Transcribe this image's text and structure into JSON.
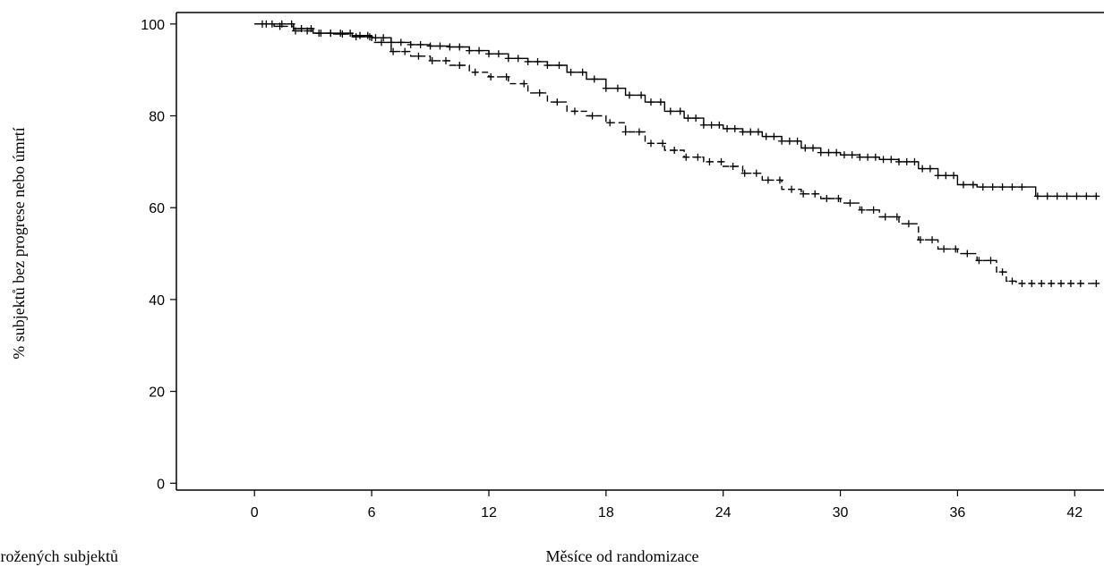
{
  "chart_data": {
    "type": "line",
    "title": "",
    "xlabel": "Měsíce od randomizace",
    "ylabel": "% subjektů bez progrese nebo úmrtí",
    "xlim": [
      -4,
      43.5
    ],
    "ylim": [
      -1.5,
      102.5
    ],
    "xticks": [
      0,
      6,
      12,
      18,
      24,
      30,
      36,
      42
    ],
    "yticks": [
      0,
      20,
      40,
      60,
      80,
      100
    ],
    "grid": false,
    "legend": "none",
    "footnote": "Počet ohrožených subjektů",
    "series": [
      {
        "line_style": "solid",
        "color": "#000000",
        "points": [
          [
            0,
            100
          ],
          [
            1,
            100
          ],
          [
            2,
            99
          ],
          [
            3,
            98
          ],
          [
            4,
            98
          ],
          [
            5,
            97.5
          ],
          [
            6,
            97
          ],
          [
            7,
            96
          ],
          [
            8,
            95.5
          ],
          [
            9,
            95.2
          ],
          [
            10,
            95
          ],
          [
            11,
            94.2
          ],
          [
            12,
            93.5
          ],
          [
            13,
            92.5
          ],
          [
            14,
            91.8
          ],
          [
            15,
            91
          ],
          [
            16,
            89.5
          ],
          [
            17,
            88
          ],
          [
            18,
            86
          ],
          [
            19,
            84.5
          ],
          [
            20,
            83
          ],
          [
            21,
            81
          ],
          [
            22,
            79.5
          ],
          [
            23,
            78
          ],
          [
            24,
            77.2
          ],
          [
            25,
            76.5
          ],
          [
            26,
            75.5
          ],
          [
            27,
            74.5
          ],
          [
            28,
            73
          ],
          [
            29,
            72
          ],
          [
            30,
            71.5
          ],
          [
            31,
            71
          ],
          [
            32,
            70.5
          ],
          [
            33,
            70
          ],
          [
            34,
            68.5
          ],
          [
            35,
            67
          ],
          [
            36,
            65
          ],
          [
            37,
            64.5
          ],
          [
            38,
            64.5
          ],
          [
            39,
            64.5
          ],
          [
            40,
            62.5
          ],
          [
            41,
            62.5
          ],
          [
            42,
            62.5
          ],
          [
            43.2,
            62.5
          ]
        ],
        "censor_x": [
          0.4,
          0.9,
          1.4,
          1.9,
          2.4,
          2.9,
          3.4,
          3.9,
          4.4,
          4.9,
          5.4,
          5.8,
          6.2,
          6.6,
          7,
          7.5,
          8,
          8.5,
          9,
          9.5,
          10,
          10.5,
          11,
          11.5,
          12,
          12.5,
          13,
          13.5,
          14,
          14.5,
          15,
          15.6,
          16.2,
          16.8,
          17.4,
          18,
          18.6,
          19.2,
          19.8,
          20.3,
          20.8,
          21.3,
          21.8,
          22.2,
          22.6,
          23,
          23.4,
          23.8,
          24.2,
          24.6,
          25,
          25.4,
          25.8,
          26.2,
          26.6,
          27,
          27.4,
          27.8,
          28.2,
          28.6,
          29,
          29.4,
          29.8,
          30.2,
          30.6,
          31,
          31.4,
          31.8,
          32.2,
          32.6,
          33,
          33.4,
          33.8,
          34.2,
          34.6,
          35,
          35.4,
          35.8,
          36.3,
          36.8,
          37.3,
          37.8,
          38.3,
          38.8,
          39.3,
          40.1,
          40.6,
          41.1,
          41.6,
          42.1,
          42.6,
          43.1
        ]
      },
      {
        "line_style": "dashed",
        "color": "#000000",
        "points": [
          [
            0,
            100
          ],
          [
            1,
            99.5
          ],
          [
            2,
            98.5
          ],
          [
            3,
            98
          ],
          [
            4,
            97.8
          ],
          [
            5,
            97.2
          ],
          [
            6,
            96
          ],
          [
            7,
            94
          ],
          [
            8,
            93
          ],
          [
            9,
            92
          ],
          [
            10,
            91
          ],
          [
            11,
            89.5
          ],
          [
            12,
            88.5
          ],
          [
            13,
            87
          ],
          [
            14,
            85
          ],
          [
            15,
            83
          ],
          [
            16,
            81
          ],
          [
            17,
            80
          ],
          [
            18,
            78.5
          ],
          [
            19,
            76.5
          ],
          [
            20,
            74
          ],
          [
            21,
            72.5
          ],
          [
            22,
            71
          ],
          [
            23,
            70
          ],
          [
            24,
            69
          ],
          [
            25,
            67.5
          ],
          [
            26,
            66
          ],
          [
            27,
            64
          ],
          [
            28,
            63
          ],
          [
            29,
            62
          ],
          [
            30,
            61
          ],
          [
            31,
            59.5
          ],
          [
            32,
            58
          ],
          [
            33,
            56.5
          ],
          [
            34,
            53
          ],
          [
            35,
            51
          ],
          [
            36,
            50
          ],
          [
            37,
            48.5
          ],
          [
            38,
            46
          ],
          [
            38.5,
            44
          ],
          [
            39,
            43.5
          ],
          [
            40,
            43.5
          ],
          [
            41,
            43.5
          ],
          [
            42,
            43.5
          ],
          [
            43.2,
            43.5
          ]
        ],
        "censor_x": [
          0.6,
          1.3,
          2.1,
          2.7,
          3.3,
          3.9,
          4.5,
          5.2,
          5.9,
          6.5,
          7.1,
          7.7,
          8.4,
          9.1,
          9.8,
          10.5,
          11.3,
          12.1,
          12.9,
          13.8,
          14.6,
          15.5,
          16.4,
          17.3,
          18.2,
          19,
          19.7,
          20.3,
          20.9,
          21.5,
          22.1,
          22.7,
          23.3,
          23.9,
          24.5,
          25.1,
          25.7,
          26.3,
          26.9,
          27.5,
          28.1,
          28.7,
          29.3,
          29.9,
          30.5,
          31.1,
          31.7,
          32.3,
          32.9,
          33.5,
          34.1,
          34.7,
          35.3,
          35.9,
          36.5,
          37.1,
          37.7,
          38.3,
          38.8,
          39.3,
          39.8,
          40.3,
          40.8,
          41.3,
          41.8,
          42.3,
          43.1
        ]
      }
    ]
  }
}
